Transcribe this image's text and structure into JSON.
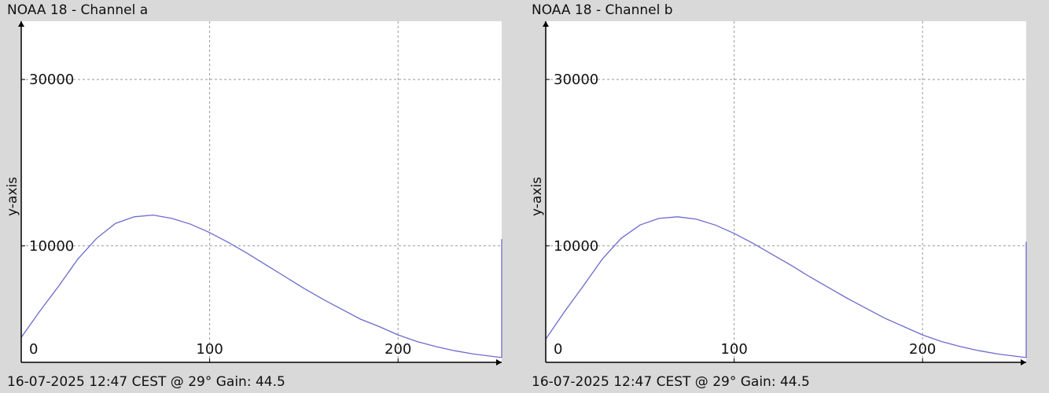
{
  "colors": {
    "background": "#d9d9d9",
    "plot_background": "#ffffff",
    "grid": "#999999",
    "line": "#6b6bcc",
    "axis": "#000000"
  },
  "panels": [
    {
      "title": "NOAA 18 - Channel a",
      "footer": "16-07-2025 12:47 CEST @ 29° Gain: 44.5",
      "ylabel": "y-axis"
    },
    {
      "title": "NOAA 18 - Channel b",
      "footer": "16-07-2025 12:47 CEST @ 29° Gain: 44.5",
      "ylabel": "y-axis"
    }
  ],
  "chart_data": [
    {
      "type": "line",
      "title": "NOAA 18 - Channel a",
      "ylabel": "y-axis",
      "xlabel": "",
      "xlim": [
        0,
        255
      ],
      "ylim": [
        -4000,
        37000
      ],
      "x_ticks": [
        0,
        100,
        200
      ],
      "y_ticks": [
        10000,
        30000
      ],
      "grid": true,
      "series": [
        {
          "x": [
            0,
            10,
            20,
            30,
            40,
            50,
            60,
            70,
            80,
            90,
            100,
            110,
            120,
            130,
            140,
            150,
            160,
            170,
            180,
            190,
            200,
            210,
            220,
            230,
            240,
            254,
            255,
            255
          ],
          "y": [
            -1000,
            2200,
            5200,
            8400,
            10900,
            12700,
            13500,
            13700,
            13300,
            12600,
            11600,
            10400,
            9100,
            7700,
            6300,
            4900,
            3600,
            2400,
            1200,
            300,
            -700,
            -1500,
            -2100,
            -2600,
            -3000,
            -3400,
            -3400,
            10800
          ]
        }
      ]
    },
    {
      "type": "line",
      "title": "NOAA 18 - Channel b",
      "ylabel": "y-axis",
      "xlabel": "",
      "xlim": [
        0,
        255
      ],
      "ylim": [
        -4000,
        37000
      ],
      "x_ticks": [
        0,
        100,
        200
      ],
      "y_ticks": [
        10000,
        30000
      ],
      "grid": true,
      "series": [
        {
          "x": [
            0,
            10,
            20,
            30,
            40,
            50,
            60,
            70,
            80,
            90,
            100,
            110,
            120,
            130,
            140,
            150,
            160,
            170,
            180,
            190,
            200,
            210,
            220,
            230,
            240,
            254,
            255,
            255
          ],
          "y": [
            -1200,
            2100,
            5200,
            8400,
            10900,
            12500,
            13300,
            13500,
            13200,
            12500,
            11500,
            10300,
            9000,
            7700,
            6300,
            5000,
            3700,
            2500,
            1300,
            300,
            -700,
            -1500,
            -2100,
            -2600,
            -3000,
            -3400,
            -3400,
            10500
          ]
        }
      ]
    }
  ]
}
